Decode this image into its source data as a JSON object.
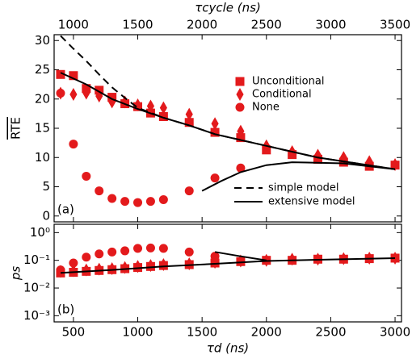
{
  "chart_data": [
    {
      "type": "scatter",
      "ylabel": "RTE",
      "x2label": "τcycle (ns)",
      "annotation": "(a)",
      "xlim": [
        350,
        3050
      ],
      "xticks": [
        500,
        1000,
        1500,
        2000,
        2500,
        3000
      ],
      "x2lim": [
        850,
        3550
      ],
      "x2ticks": [
        1000,
        1500,
        2000,
        2500,
        3000,
        3500
      ],
      "ylim": [
        -1,
        31
      ],
      "yticks": [
        0,
        5,
        10,
        15,
        20,
        25,
        30
      ],
      "log": false,
      "x": [
        400,
        500,
        600,
        700,
        800,
        900,
        1000,
        1100,
        1200,
        1400,
        1600,
        1800,
        2000,
        2200,
        2400,
        2600,
        2800,
        3000
      ],
      "series": [
        {
          "name": "Unconditional",
          "marker": "square",
          "color": "#e31a1c",
          "values": [
            24.2,
            24,
            21.8,
            21.5,
            20.3,
            19.2,
            18.7,
            17.6,
            17,
            16,
            14.3,
            13.4,
            11.3,
            10.5,
            9.7,
            9.2,
            8.5,
            8.7
          ]
        },
        {
          "name": "Conditional",
          "marker": "diamond",
          "color": "#e31a1c",
          "values": [
            21,
            20.8,
            21,
            20.5,
            19.5,
            19.5,
            19,
            18.8,
            18.5,
            17.4,
            15.8,
            14.5,
            12,
            11,
            10.4,
            10,
            9.3,
            8.8
          ]
        },
        {
          "name": "None",
          "marker": "circle",
          "color": "#e31a1c",
          "values": [
            21,
            12.3,
            6.8,
            4.3,
            3,
            2.5,
            2.3,
            2.5,
            2.8,
            4.3,
            6.5,
            8.2,
            null,
            null,
            null,
            null,
            null,
            null
          ]
        },
        {
          "name": "simple model",
          "line": "dashed",
          "color": "#000000",
          "x": [
            400,
            500,
            600,
            700,
            800,
            900,
            1000,
            1200,
            1400,
            1600,
            2000,
            2400,
            3000
          ],
          "values": [
            30.8,
            28.6,
            26.5,
            24.2,
            22,
            20.2,
            18.5,
            16.8,
            15.5,
            14,
            12,
            10,
            8
          ]
        },
        {
          "name": "extensive model",
          "line": "solid",
          "color": "#000000",
          "x": [
            400,
            600,
            800,
            1000,
            1200,
            1400,
            1600,
            2000,
            2400,
            3000,
            null,
            1500,
            1650,
            1800,
            2000,
            2200,
            2600,
            3000
          ],
          "values": [
            24.5,
            22.5,
            20,
            18.3,
            16.8,
            15.5,
            14,
            12,
            10,
            8,
            null,
            4.3,
            6,
            7.5,
            8.7,
            9.2,
            9,
            8
          ]
        }
      ]
    },
    {
      "type": "scatter",
      "ylabel": "ps",
      "xlabel": "τd (ns)",
      "annotation": "(b)",
      "xlim": [
        350,
        3050
      ],
      "xticks": [
        500,
        1000,
        1500,
        2000,
        2500,
        3000
      ],
      "ylim": [
        0.0006,
        2
      ],
      "log": true,
      "yticks": [
        {
          "value": 1,
          "label": "10⁰"
        },
        {
          "value": 0.1,
          "label": "10⁻¹"
        },
        {
          "value": 0.01,
          "label": "10⁻²"
        },
        {
          "value": 0.001,
          "label": "10⁻³"
        }
      ],
      "x": [
        400,
        500,
        600,
        700,
        800,
        900,
        1000,
        1100,
        1200,
        1400,
        1600,
        1800,
        2000,
        2200,
        2400,
        2600,
        2800,
        3000
      ],
      "series": [
        {
          "marker": "square",
          "color": "#e31a1c",
          "values": [
            0.035,
            0.037,
            0.04,
            0.043,
            0.046,
            0.05,
            0.055,
            0.06,
            0.065,
            0.07,
            0.08,
            0.09,
            0.1,
            0.1,
            0.11,
            0.11,
            0.115,
            0.12
          ]
        },
        {
          "marker": "diamond",
          "color": "#e31a1c",
          "values": [
            0.04,
            0.042,
            0.045,
            0.048,
            0.05,
            0.055,
            0.06,
            0.065,
            0.07,
            0.075,
            0.085,
            0.095,
            0.1,
            0.11,
            0.11,
            0.115,
            0.12,
            0.12
          ]
        },
        {
          "marker": "circle",
          "color": "#e31a1c",
          "values": [
            0.045,
            0.08,
            0.13,
            0.17,
            0.2,
            0.22,
            0.27,
            0.28,
            0.27,
            0.2,
            0.14,
            null,
            null,
            null,
            null,
            null,
            null,
            null
          ]
        },
        {
          "line": "solid",
          "color": "#000000",
          "x": [
            400,
            800,
            1200,
            1600,
            2000,
            2400,
            3000,
            null,
            1600,
            1800,
            2000
          ],
          "values": [
            0.035,
            0.045,
            0.06,
            0.075,
            0.095,
            0.105,
            0.12,
            null,
            0.2,
            0.14,
            0.1
          ]
        }
      ]
    }
  ]
}
